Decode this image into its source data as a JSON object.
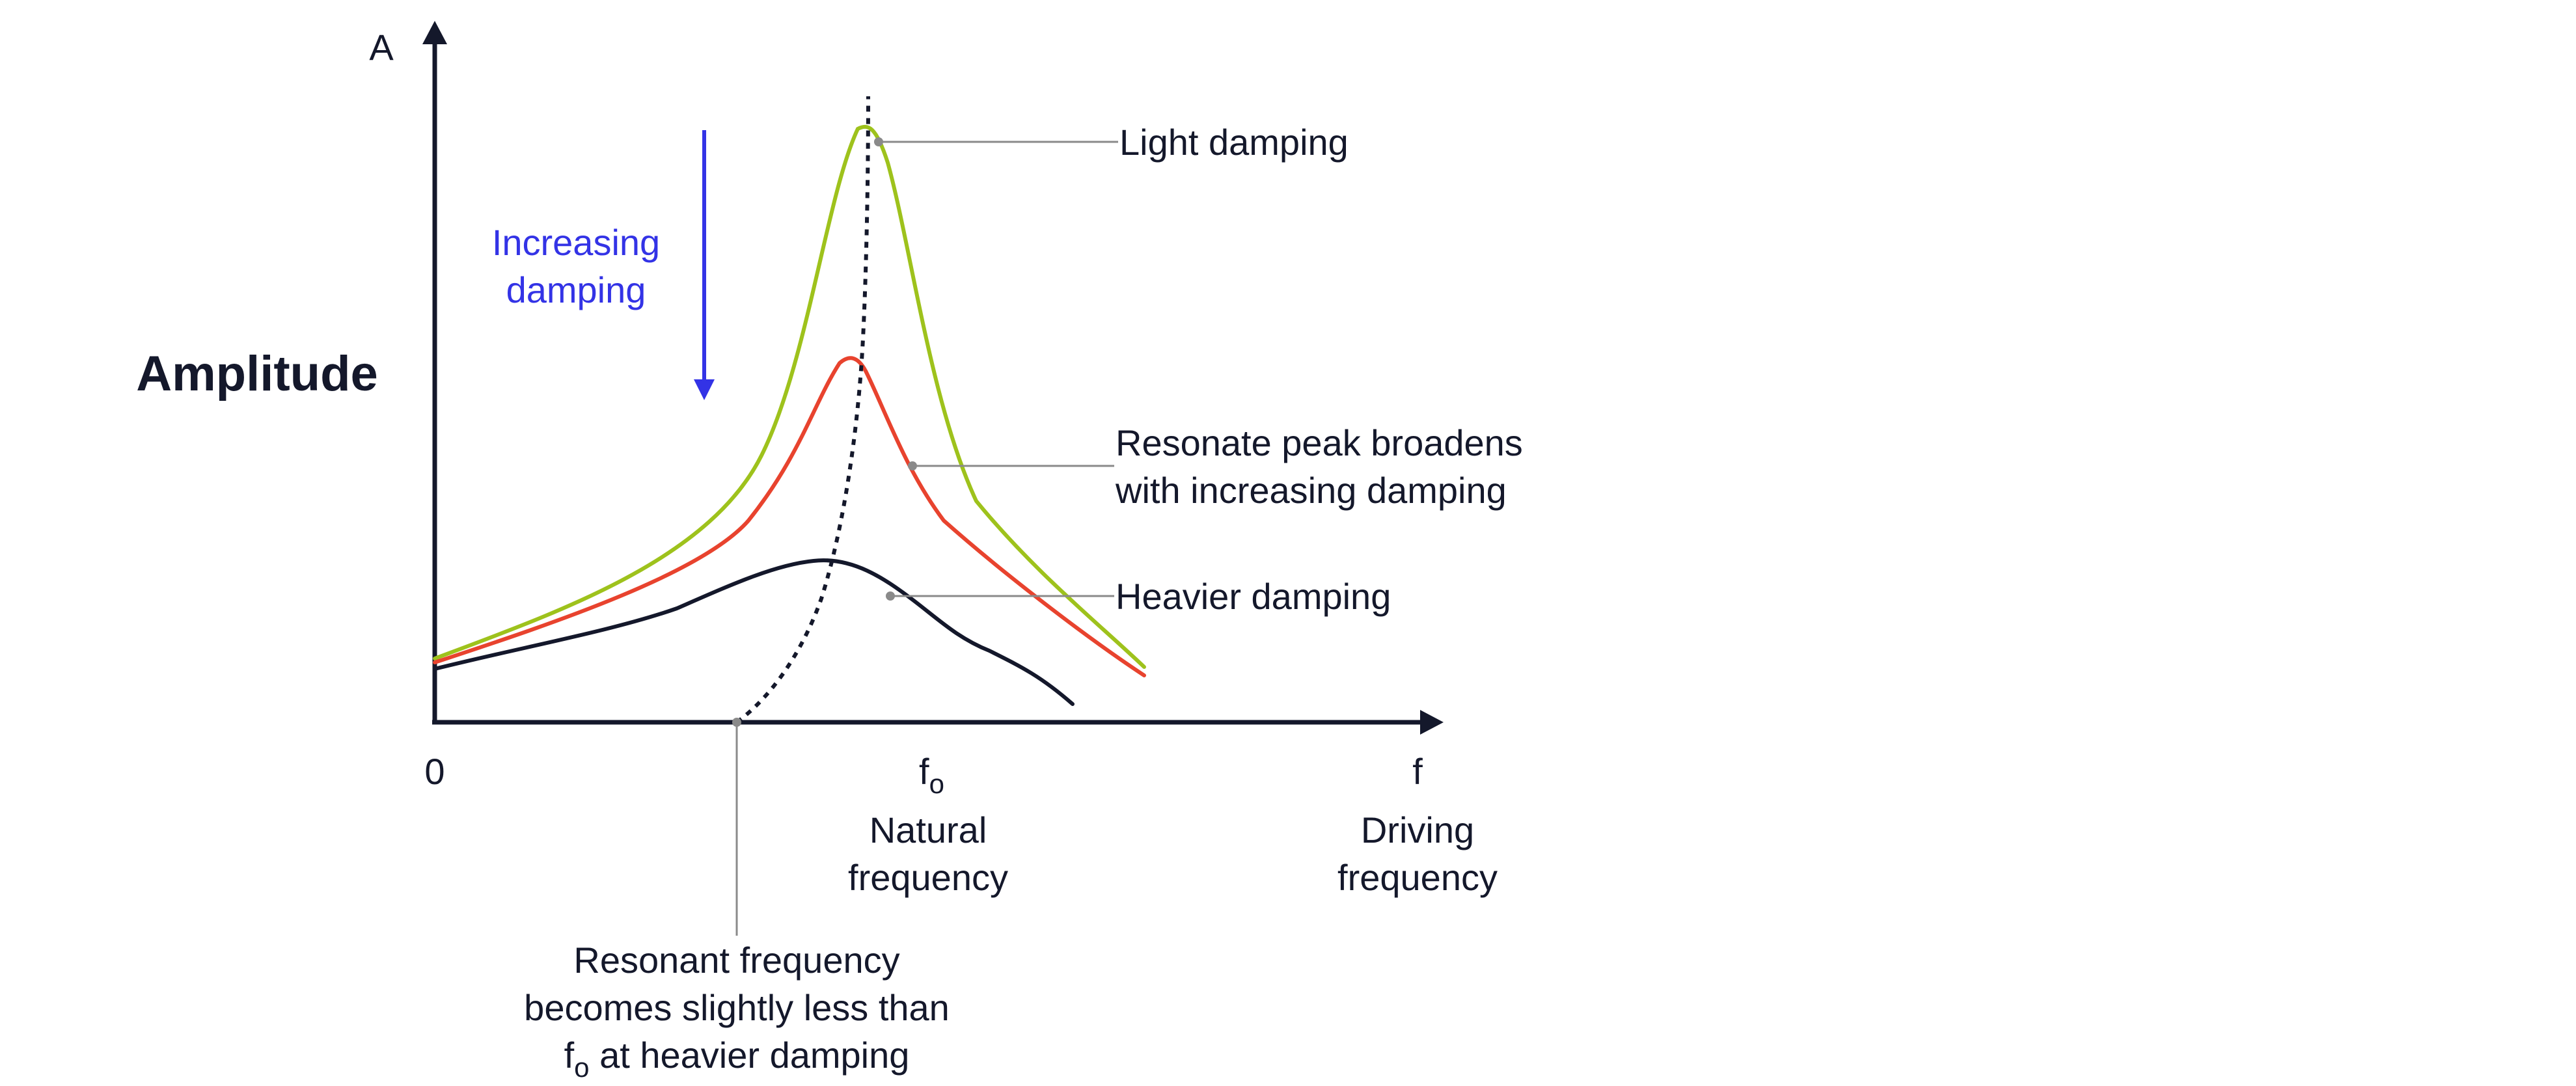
{
  "axis": {
    "y_symbol": "A",
    "y_title": "Amplitude",
    "origin": "0",
    "x_symbol": "f",
    "x_title_line1": "Driving",
    "x_title_line2": "frequency"
  },
  "natural_freq": {
    "symbol": "f",
    "subscript": "o",
    "label_line1": "Natural",
    "label_line2": "frequency"
  },
  "arrow_label": {
    "line1": "Increasing",
    "line2": "damping"
  },
  "annotations": {
    "light": "Light damping",
    "broaden_line1": "Resonate peak broadens",
    "broaden_line2": "with increasing damping",
    "heavy": "Heavier damping",
    "resonant_line1": "Resonant frequency",
    "resonant_line2": "becomes slightly less than",
    "resonant_line3_sym": "f",
    "resonant_line3_sub": "o",
    "resonant_line3_rest": " at heavier damping"
  },
  "colors": {
    "light_curve": "#9ec21c",
    "medium_curve": "#e8432e",
    "heavy_curve": "#14182b",
    "arrow": "#3333e6",
    "leader": "#8a8a8a"
  }
}
